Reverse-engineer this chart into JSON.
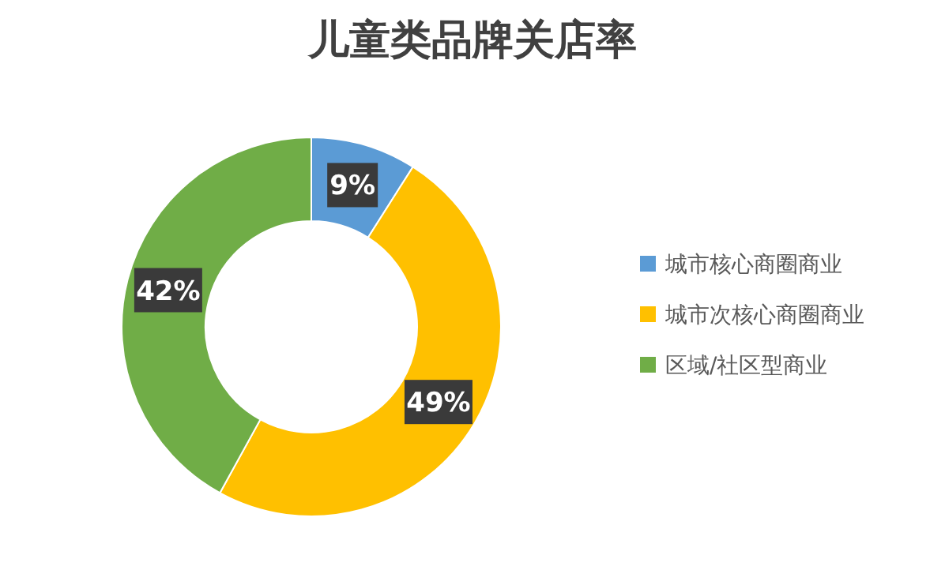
{
  "chart_data": {
    "type": "donut",
    "title": "儿童类品牌关店率",
    "categories": [
      "城市核心商圈商业",
      "城市次核心商圈商业",
      "区域/社区型商业"
    ],
    "values": [
      9,
      49,
      42
    ],
    "colors": [
      "#5b9bd5",
      "#ffc000",
      "#70ad47"
    ],
    "value_labels": [
      "9%",
      "49%",
      "42%"
    ],
    "legend": "right"
  }
}
